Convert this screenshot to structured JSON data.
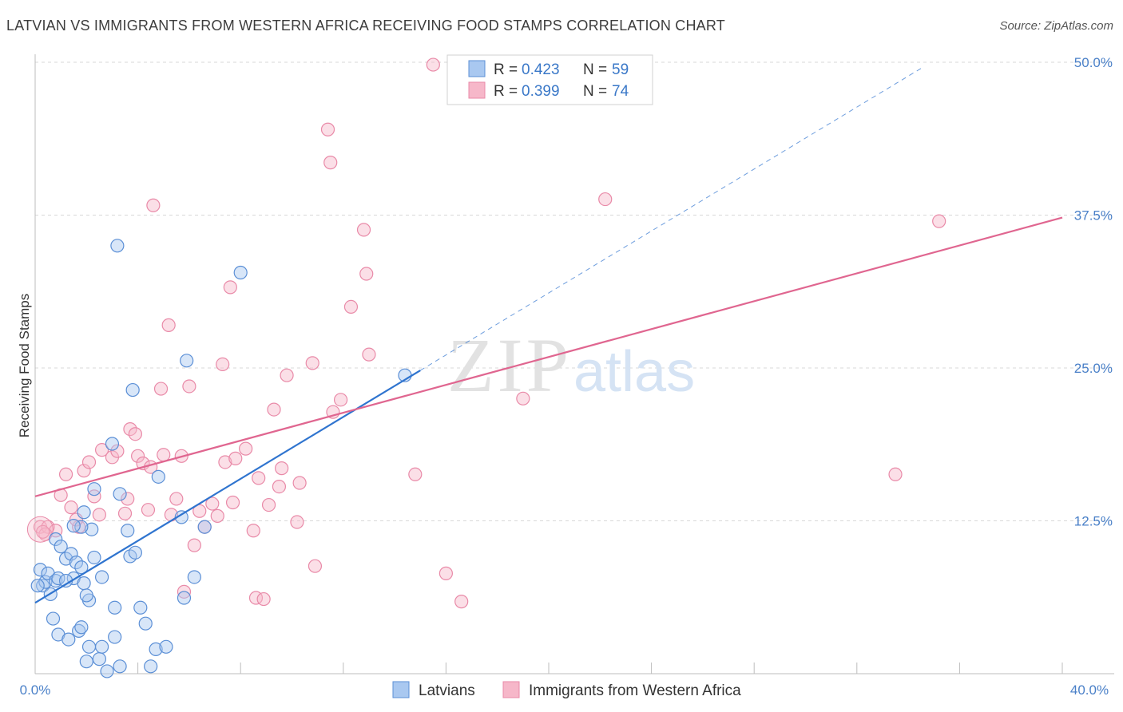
{
  "title": "LATVIAN VS IMMIGRANTS FROM WESTERN AFRICA RECEIVING FOOD STAMPS CORRELATION CHART",
  "source": "Source: ZipAtlas.com",
  "watermark": {
    "zip": "ZIP",
    "atlas": "atlas"
  },
  "colors": {
    "latvians_fill": "#a9c8f0",
    "latvians_stroke": "#5b8fd6",
    "latvians_line": "#2f74cf",
    "wafrica_fill": "#f6b7c9",
    "wafrica_stroke": "#e98aa8",
    "wafrica_line": "#e06690",
    "axis_label": "#4a80c8",
    "grid": "#d8d8d8"
  },
  "legend": {
    "r_label": "R =",
    "n_label": "N =",
    "latvians": {
      "r": "0.423",
      "n": "59"
    },
    "wafrica": {
      "r": "0.399",
      "n": "74"
    }
  },
  "bottom_legend": {
    "latvians": "Latvians",
    "wafrica": "Immigrants from Western Africa"
  },
  "chart_data": {
    "type": "scatter",
    "title": "LATVIAN VS IMMIGRANTS FROM WESTERN AFRICA RECEIVING FOOD STAMPS CORRELATION CHART",
    "xlabel": "",
    "ylabel": "Receiving Food Stamps",
    "xlim": [
      0,
      40
    ],
    "ylim": [
      0,
      50
    ],
    "x_tick_labels": [
      "0.0%",
      "40.0%"
    ],
    "y_ticks": [
      12.5,
      25.0,
      37.5,
      50.0
    ],
    "y_tick_labels": [
      "12.5%",
      "25.0%",
      "37.5%",
      "50.0%"
    ],
    "grid": true,
    "legend_position": "top-center",
    "series": [
      {
        "name": "Latvians",
        "r": 0.423,
        "n": 59,
        "trend": {
          "x0": 0.0,
          "y0": 5.8,
          "x1": 15.0,
          "y1": 24.8,
          "dashed_to_x": 34.5
        },
        "points": [
          [
            0.2,
            8.5
          ],
          [
            0.3,
            7.2
          ],
          [
            0.4,
            7.5
          ],
          [
            0.5,
            8.2
          ],
          [
            0.6,
            6.5
          ],
          [
            0.8,
            11.0
          ],
          [
            0.8,
            7.6
          ],
          [
            0.9,
            7.8
          ],
          [
            0.7,
            4.5
          ],
          [
            0.9,
            3.2
          ],
          [
            1.3,
            2.8
          ],
          [
            1.7,
            3.5
          ],
          [
            1.8,
            3.8
          ],
          [
            2.1,
            2.2
          ],
          [
            2.0,
            1.0
          ],
          [
            2.5,
            1.2
          ],
          [
            2.8,
            0.2
          ],
          [
            3.3,
            0.6
          ],
          [
            4.5,
            0.6
          ],
          [
            4.7,
            2.0
          ],
          [
            5.1,
            2.2
          ],
          [
            2.6,
            2.2
          ],
          [
            3.1,
            3.0
          ],
          [
            3.1,
            5.4
          ],
          [
            2.1,
            6.0
          ],
          [
            2.3,
            9.5
          ],
          [
            2.2,
            11.8
          ],
          [
            1.2,
            9.4
          ],
          [
            1.4,
            9.8
          ],
          [
            1.6,
            9.1
          ],
          [
            1.8,
            8.7
          ],
          [
            1.5,
            7.8
          ],
          [
            1.2,
            7.6
          ],
          [
            1.9,
            7.4
          ],
          [
            2.0,
            6.4
          ],
          [
            2.6,
            7.9
          ],
          [
            1.0,
            10.4
          ],
          [
            1.8,
            12.0
          ],
          [
            1.5,
            12.1
          ],
          [
            1.9,
            13.2
          ],
          [
            2.3,
            15.1
          ],
          [
            3.3,
            14.7
          ],
          [
            3.6,
            11.7
          ],
          [
            3.7,
            9.6
          ],
          [
            3.9,
            9.9
          ],
          [
            4.1,
            5.4
          ],
          [
            4.3,
            4.1
          ],
          [
            5.7,
            12.8
          ],
          [
            5.8,
            6.2
          ],
          [
            6.2,
            7.9
          ],
          [
            6.6,
            12.0
          ],
          [
            3.0,
            18.8
          ],
          [
            3.8,
            23.2
          ],
          [
            4.8,
            16.1
          ],
          [
            5.9,
            25.6
          ],
          [
            8.0,
            32.8
          ],
          [
            3.2,
            35.0
          ],
          [
            14.4,
            24.4
          ],
          [
            0.1,
            7.2
          ]
        ]
      },
      {
        "name": "Immigrants from Western Africa",
        "r": 0.399,
        "n": 74,
        "trend": {
          "x0": 0.0,
          "y0": 14.5,
          "x1": 40.0,
          "y1": 37.3
        },
        "points": [
          [
            0.2,
            12.0
          ],
          [
            0.5,
            12.0
          ],
          [
            0.8,
            11.7
          ],
          [
            0.4,
            11.4
          ],
          [
            1.0,
            14.6
          ],
          [
            1.2,
            16.3
          ],
          [
            1.4,
            13.6
          ],
          [
            1.7,
            12.0
          ],
          [
            1.9,
            16.6
          ],
          [
            2.1,
            17.3
          ],
          [
            2.3,
            14.5
          ],
          [
            2.5,
            13.0
          ],
          [
            2.6,
            18.3
          ],
          [
            3.0,
            17.7
          ],
          [
            3.2,
            18.2
          ],
          [
            3.5,
            13.1
          ],
          [
            3.6,
            14.3
          ],
          [
            3.7,
            20.0
          ],
          [
            3.9,
            19.6
          ],
          [
            4.0,
            17.8
          ],
          [
            4.2,
            17.2
          ],
          [
            4.4,
            13.4
          ],
          [
            4.5,
            16.9
          ],
          [
            4.6,
            38.3
          ],
          [
            4.9,
            23.3
          ],
          [
            5.0,
            17.9
          ],
          [
            5.2,
            28.5
          ],
          [
            5.3,
            13.0
          ],
          [
            5.5,
            14.3
          ],
          [
            5.7,
            17.8
          ],
          [
            5.8,
            6.7
          ],
          [
            6.0,
            23.5
          ],
          [
            6.2,
            10.5
          ],
          [
            6.4,
            13.3
          ],
          [
            6.6,
            12.0
          ],
          [
            6.9,
            13.9
          ],
          [
            7.1,
            12.9
          ],
          [
            7.3,
            25.3
          ],
          [
            7.4,
            17.3
          ],
          [
            7.7,
            14.0
          ],
          [
            7.6,
            31.6
          ],
          [
            7.8,
            17.6
          ],
          [
            8.2,
            18.4
          ],
          [
            8.5,
            11.7
          ],
          [
            8.6,
            6.2
          ],
          [
            8.7,
            16.0
          ],
          [
            8.9,
            6.1
          ],
          [
            9.1,
            13.8
          ],
          [
            9.3,
            21.6
          ],
          [
            9.5,
            15.3
          ],
          [
            9.6,
            16.8
          ],
          [
            9.8,
            24.4
          ],
          [
            10.2,
            12.4
          ],
          [
            10.3,
            15.6
          ],
          [
            10.8,
            25.4
          ],
          [
            10.9,
            8.8
          ],
          [
            11.4,
            44.5
          ],
          [
            11.5,
            41.8
          ],
          [
            11.6,
            21.4
          ],
          [
            11.9,
            22.4
          ],
          [
            12.3,
            30.0
          ],
          [
            12.8,
            36.3
          ],
          [
            12.9,
            32.7
          ],
          [
            13.0,
            26.1
          ],
          [
            14.8,
            16.3
          ],
          [
            15.5,
            49.8
          ],
          [
            16.0,
            8.2
          ],
          [
            16.6,
            5.9
          ],
          [
            19.0,
            22.5
          ],
          [
            22.2,
            38.8
          ],
          [
            33.5,
            16.3
          ],
          [
            35.2,
            37.0
          ],
          [
            0.3,
            11.6
          ],
          [
            1.6,
            12.6
          ]
        ]
      }
    ]
  }
}
